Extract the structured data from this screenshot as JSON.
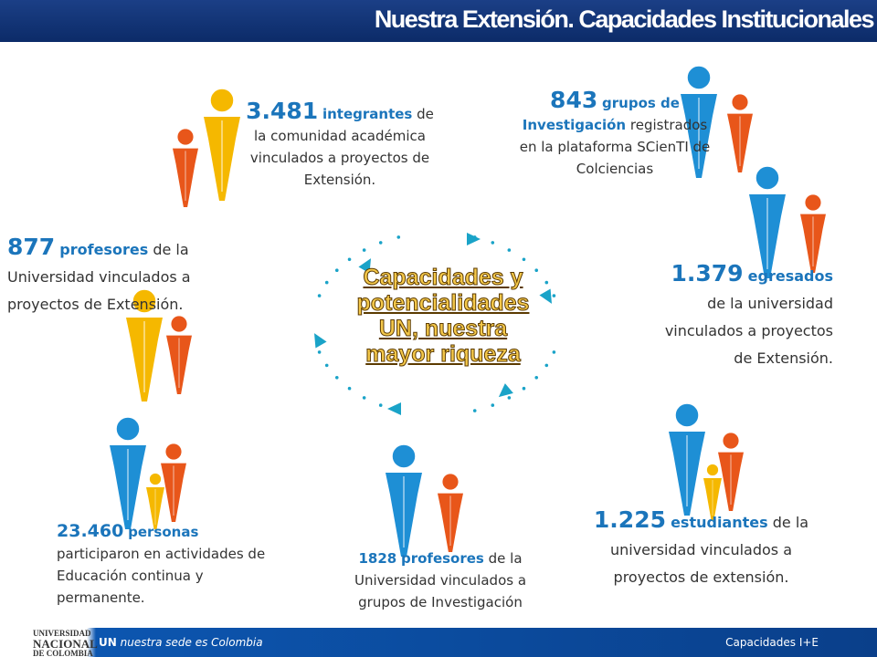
{
  "header": {
    "title": "Nuestra Extensión. Capacidades Institucionales"
  },
  "center": {
    "lines": [
      "Capacidades y",
      "potencialidades",
      "UN, nuestra",
      "mayor riqueza"
    ]
  },
  "blocks": [
    {
      "number": "3.481",
      "keyword": "integrantes",
      "text": "de la comunidad académica vinculados a proyectos de Extensión."
    },
    {
      "number": "843",
      "keyword": "grupos de Investigación",
      "text": "registrados en la plataforma SCienTI de Colciencias"
    },
    {
      "number": "877",
      "keyword": "profesores",
      "text": "de la Universidad vinculados a proyectos de Extensión."
    },
    {
      "number": "1.379",
      "keyword": "egresados",
      "text": "de la universidad vinculados a proyectos de Extensión."
    },
    {
      "number": "23.460",
      "keyword": "personas",
      "text": "participaron en actividades de Educación continua y permanente."
    },
    {
      "number": "1828",
      "keyword": "profesores",
      "text": "de la Universidad vinculados a grupos de Investigación"
    },
    {
      "number": "1.225",
      "keyword": "estudiantes",
      "text": "de la universidad vinculados a proyectos de extensión."
    }
  ],
  "footer": {
    "logo": [
      "UNIVERSIDAD",
      "NACIONAL",
      "DE COLOMBIA"
    ],
    "brand": "UN",
    "tagline": "nuestra sede es Colombia",
    "right": "Capacidades I+E"
  }
}
